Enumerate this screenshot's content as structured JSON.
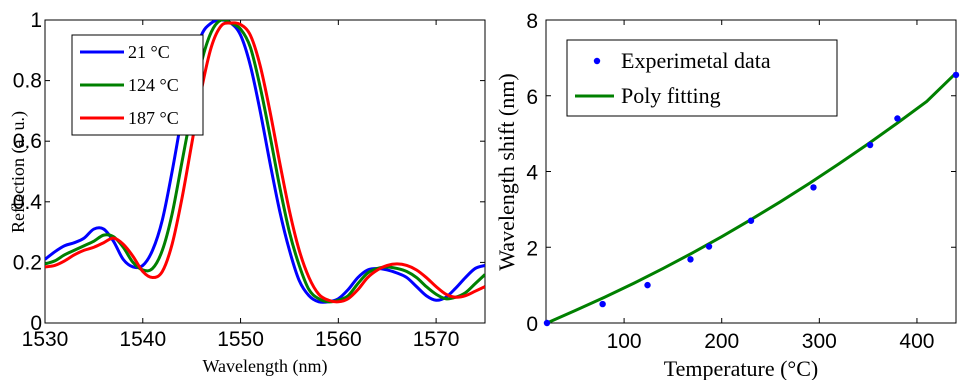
{
  "chart_data": [
    {
      "type": "line",
      "xlabel": "Wavelength (nm)",
      "ylabel": "Reflection (a. u.)",
      "xlim": [
        1530,
        1575
      ],
      "ylim": [
        0,
        1
      ],
      "xticks": [
        "1530",
        "1540",
        "1550",
        "1560",
        "1570"
      ],
      "yticks": [
        "0",
        "0.2",
        "0.4",
        "0.6",
        "0.8",
        "1"
      ],
      "legend_position": "top-left",
      "series": [
        {
          "name": "21 °C",
          "color": "#0000ff",
          "x": [
            1530,
            1531,
            1532,
            1533,
            1534,
            1535,
            1536,
            1537,
            1538,
            1539,
            1540,
            1541,
            1542,
            1543,
            1544,
            1545,
            1546,
            1547,
            1548,
            1549,
            1550,
            1551,
            1552,
            1553,
            1554,
            1555,
            1556,
            1557,
            1558,
            1559,
            1560,
            1561,
            1562,
            1563,
            1564,
            1565,
            1566,
            1567,
            1568,
            1569,
            1570,
            1571,
            1572,
            1573,
            1574,
            1575
          ],
          "y": [
            0.21,
            0.235,
            0.255,
            0.265,
            0.28,
            0.31,
            0.31,
            0.27,
            0.21,
            0.185,
            0.19,
            0.24,
            0.34,
            0.5,
            0.68,
            0.84,
            0.95,
            0.99,
            1.0,
            0.99,
            0.95,
            0.85,
            0.7,
            0.53,
            0.37,
            0.24,
            0.14,
            0.09,
            0.07,
            0.07,
            0.08,
            0.11,
            0.15,
            0.175,
            0.18,
            0.175,
            0.165,
            0.15,
            0.12,
            0.09,
            0.075,
            0.085,
            0.115,
            0.15,
            0.18,
            0.19
          ]
        },
        {
          "name": "124 °C",
          "color": "#008000",
          "x": [
            1530,
            1531,
            1532,
            1533,
            1534,
            1535,
            1536,
            1537,
            1538,
            1539,
            1540,
            1541,
            1542,
            1543,
            1544,
            1545,
            1546,
            1547,
            1548,
            1549,
            1550,
            1551,
            1552,
            1553,
            1554,
            1555,
            1556,
            1557,
            1558,
            1559,
            1560,
            1561,
            1562,
            1563,
            1564,
            1565,
            1566,
            1567,
            1568,
            1569,
            1570,
            1571,
            1572,
            1573,
            1574,
            1575
          ],
          "y": [
            0.195,
            0.205,
            0.225,
            0.24,
            0.255,
            0.27,
            0.29,
            0.285,
            0.25,
            0.2,
            0.175,
            0.18,
            0.24,
            0.36,
            0.53,
            0.7,
            0.86,
            0.96,
            1.0,
            0.99,
            0.97,
            0.91,
            0.78,
            0.62,
            0.45,
            0.3,
            0.19,
            0.11,
            0.08,
            0.07,
            0.075,
            0.09,
            0.13,
            0.165,
            0.18,
            0.185,
            0.18,
            0.17,
            0.15,
            0.12,
            0.095,
            0.08,
            0.085,
            0.1,
            0.13,
            0.16
          ]
        },
        {
          "name": "187 °C",
          "color": "#ff0000",
          "x": [
            1530,
            1531,
            1532,
            1533,
            1534,
            1535,
            1536,
            1537,
            1538,
            1539,
            1540,
            1541,
            1542,
            1543,
            1544,
            1545,
            1546,
            1547,
            1548,
            1549,
            1550,
            1551,
            1552,
            1553,
            1554,
            1555,
            1556,
            1557,
            1558,
            1559,
            1560,
            1561,
            1562,
            1563,
            1564,
            1565,
            1566,
            1567,
            1568,
            1569,
            1570,
            1571,
            1572,
            1573,
            1574,
            1575
          ],
          "y": [
            0.185,
            0.19,
            0.205,
            0.225,
            0.24,
            0.25,
            0.265,
            0.28,
            0.26,
            0.22,
            0.17,
            0.15,
            0.17,
            0.26,
            0.41,
            0.59,
            0.77,
            0.91,
            0.98,
            0.99,
            0.985,
            0.95,
            0.85,
            0.7,
            0.53,
            0.37,
            0.24,
            0.15,
            0.095,
            0.075,
            0.07,
            0.08,
            0.11,
            0.15,
            0.175,
            0.19,
            0.195,
            0.19,
            0.175,
            0.15,
            0.12,
            0.095,
            0.085,
            0.09,
            0.105,
            0.12
          ]
        }
      ]
    },
    {
      "type": "scatter",
      "xlabel": "Temperature (°C)",
      "ylabel": "Wavelength shift (nm)",
      "xlim": [
        20,
        440
      ],
      "ylim": [
        0,
        8
      ],
      "xticks": [
        {
          "value": 100,
          "label": "100"
        },
        {
          "value": 200,
          "label": "200"
        },
        {
          "value": 300,
          "label": "300"
        },
        {
          "value": 400,
          "label": "400"
        }
      ],
      "yticks": [
        "0",
        "2",
        "4",
        "6",
        "8"
      ],
      "legend_position": "top-left",
      "series": [
        {
          "name": "Experimetal data",
          "kind": "markers",
          "color": "#0000ff",
          "x": [
            21,
            78,
            124,
            168,
            187,
            230,
            294,
            352,
            380,
            440
          ],
          "y": [
            0.0,
            0.5,
            1.0,
            1.68,
            2.02,
            2.7,
            3.58,
            4.7,
            5.4,
            6.55
          ]
        },
        {
          "name": "Poly fitting",
          "kind": "line",
          "color": "#008000",
          "x": [
            21,
            50,
            80,
            110,
            140,
            170,
            200,
            230,
            260,
            290,
            320,
            350,
            380,
            410,
            440
          ],
          "y": [
            0.0,
            0.33,
            0.68,
            1.05,
            1.44,
            1.85,
            2.28,
            2.73,
            3.2,
            3.69,
            4.2,
            4.73,
            5.28,
            5.85,
            6.6
          ]
        }
      ]
    }
  ]
}
